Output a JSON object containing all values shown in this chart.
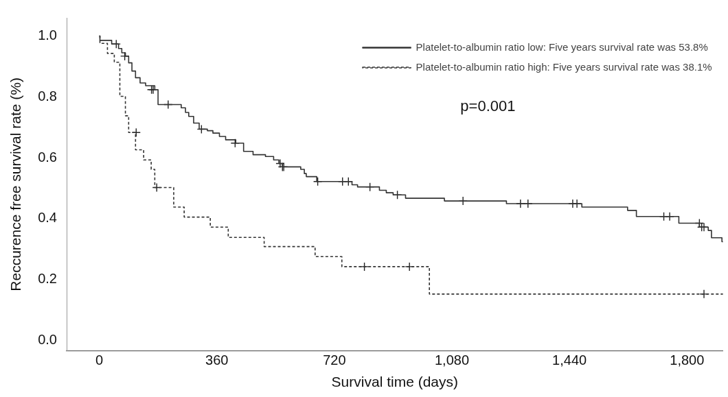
{
  "chart_data": {
    "type": "step",
    "xlabel": "Survival time (days)",
    "ylabel": "Reccurence free survival rate (%)",
    "xlim": [
      -100,
      1910
    ],
    "xticks": [
      0,
      360,
      720,
      {
        "value": 1080,
        "label": "1,080"
      },
      {
        "value": 1440,
        "label": "1,440"
      },
      {
        "value": 1800,
        "label": "1,800"
      }
    ],
    "ylim": [
      -0.035,
      1.06
    ],
    "yticks": [
      {
        "value": 0,
        "label": "0.0"
      },
      0.2,
      0.4,
      0.6,
      0.8,
      {
        "value": 1,
        "label": "1.0"
      }
    ],
    "grid": false,
    "legend": "top right",
    "annotations": [
      "p=0.001"
    ],
    "series": [
      {
        "name": "Platelet-to-albumin ratio low: Five years survival rate was 53.8%",
        "color": "#333333",
        "line_style": "solid",
        "marker": "none",
        "x": [
          0,
          2,
          38,
          59,
          69,
          80,
          90,
          100,
          111,
          125,
          142,
          170,
          180,
          251,
          264,
          274,
          289,
          306,
          331,
          348,
          368,
          387,
          418,
          442,
          471,
          509,
          534,
          550,
          561,
          617,
          628,
          634,
          666,
          774,
          791,
          858,
          879,
          900,
          938,
          1057,
          1247,
          1478,
          1618,
          1645,
          1775,
          1838,
          1865,
          1875,
          1907,
          1910
        ],
        "values": [
          1.0,
          0.986,
          0.974,
          0.959,
          0.945,
          0.934,
          0.912,
          0.885,
          0.863,
          0.846,
          0.837,
          0.824,
          0.775,
          0.764,
          0.749,
          0.736,
          0.714,
          0.694,
          0.689,
          0.681,
          0.67,
          0.659,
          0.648,
          0.621,
          0.61,
          0.604,
          0.593,
          0.581,
          0.57,
          0.562,
          0.548,
          0.538,
          0.522,
          0.511,
          0.504,
          0.493,
          0.485,
          0.478,
          0.467,
          0.458,
          0.449,
          0.438,
          0.427,
          0.407,
          0.385,
          0.372,
          0.361,
          0.337,
          0.324,
          0.324
        ]
      },
      {
        "name": "Platelet-to-albumin ratio high: Five years survival rate was 38.1%",
        "color": "#333333",
        "line_style": "dashed",
        "marker": "none",
        "x": [
          0,
          2,
          25,
          46,
          63,
          80,
          90,
          111,
          136,
          159,
          170,
          228,
          260,
          340,
          395,
          505,
          661,
          743,
          1011,
          1910
        ],
        "values": [
          1.0,
          0.976,
          0.943,
          0.914,
          0.802,
          0.738,
          0.683,
          0.626,
          0.593,
          0.562,
          0.502,
          0.438,
          0.405,
          0.372,
          0.338,
          0.308,
          0.275,
          0.242,
          0.152,
          0.152
        ]
      },
      {
        "type": "scatter",
        "color": "#222222",
        "marker": "cross",
        "x": [
          52,
          78,
          160,
          165,
          211,
          313,
          416,
          554,
          561,
          565,
          669,
          745,
          763,
          829,
          913,
          1114,
          1290,
          1313,
          1450,
          1463,
          1729,
          1747,
          1838,
          1845,
          1852
        ],
        "values": [
          0.974,
          0.934,
          0.824,
          0.824,
          0.775,
          0.694,
          0.648,
          0.581,
          0.57,
          0.57,
          0.522,
          0.522,
          0.522,
          0.504,
          0.478,
          0.458,
          0.449,
          0.449,
          0.449,
          0.449,
          0.407,
          0.407,
          0.385,
          0.372,
          0.372
        ]
      },
      {
        "type": "scatter",
        "color": "#222222",
        "marker": "cross",
        "x": [
          113,
          176,
          812,
          950,
          1852
        ],
        "values": [
          0.683,
          0.502,
          0.242,
          0.242,
          0.152
        ]
      }
    ]
  }
}
